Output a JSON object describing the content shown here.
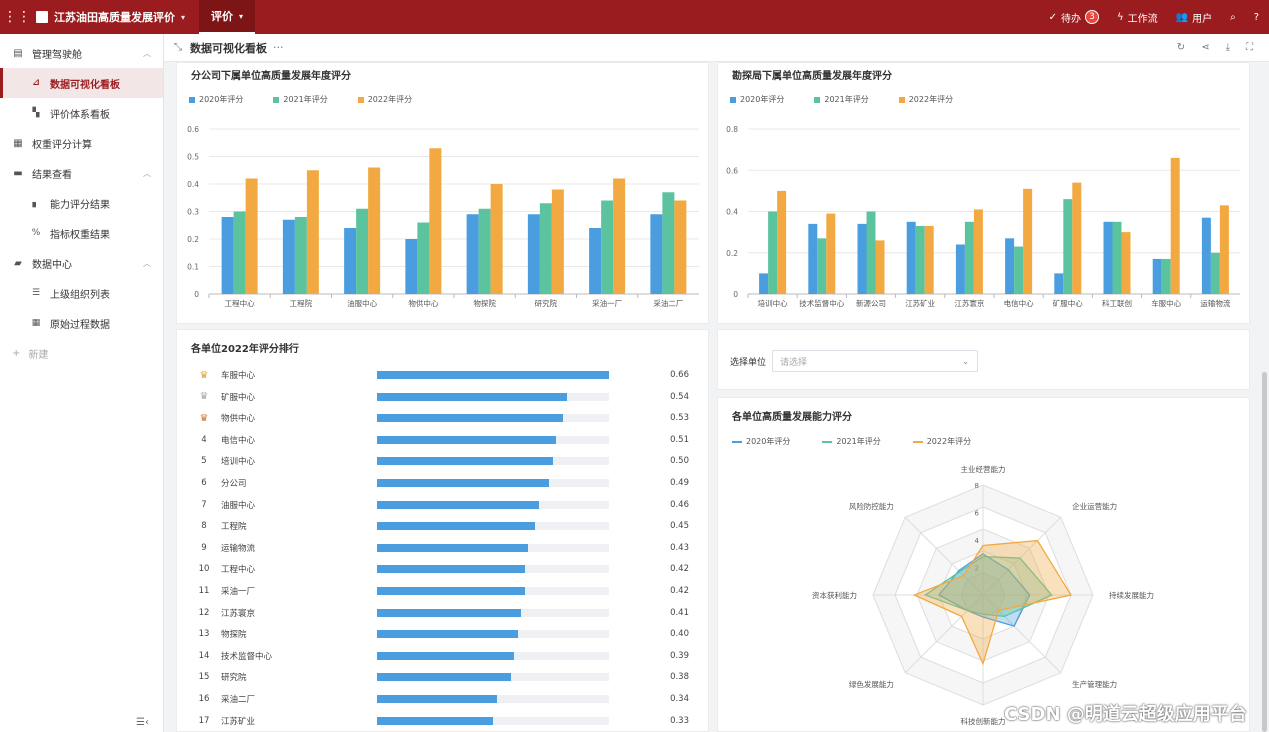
{
  "topbar": {
    "app_title": "江苏油田高质量发展评价",
    "active_tab": "评价",
    "todo_label": "待办",
    "todo_count": "3",
    "workflow_label": "工作流",
    "user_label": "用户"
  },
  "sidebar": {
    "groups": [
      {
        "label": "管理驾驶舱",
        "items": [
          "数据可视化看板",
          "评价体系看板"
        ]
      },
      {
        "label": "权重评分计算",
        "items": []
      },
      {
        "label": "结果查看",
        "items": [
          "能力评分结果",
          "指标权重结果"
        ]
      },
      {
        "label": "数据中心",
        "items": [
          "上级组织列表",
          "原始过程数据"
        ]
      }
    ],
    "new_label": "新建"
  },
  "pagebar": {
    "title": "数据可视化看板",
    "more": "···"
  },
  "colors": {
    "s2020": "#4a9ee0",
    "s2021": "#5bc49f",
    "s2022": "#f2a941",
    "brand": "#9b1c1f"
  },
  "chart_data": [
    {
      "type": "bar",
      "title": "分公司下属单位高质量发展年度评分",
      "categories": [
        "工程中心",
        "工程院",
        "油服中心",
        "物供中心",
        "物探院",
        "研究院",
        "采油一厂",
        "采油二厂"
      ],
      "series": [
        {
          "name": "2020年评分",
          "values": [
            0.28,
            0.27,
            0.24,
            0.2,
            0.29,
            0.29,
            0.24,
            0.29
          ]
        },
        {
          "name": "2021年评分",
          "values": [
            0.3,
            0.28,
            0.31,
            0.26,
            0.31,
            0.33,
            0.34,
            0.37
          ]
        },
        {
          "name": "2022年评分",
          "values": [
            0.42,
            0.45,
            0.46,
            0.53,
            0.4,
            0.38,
            0.42,
            0.34
          ]
        }
      ],
      "ylim": [
        0,
        0.6
      ],
      "yticks": [
        "0",
        "0.1",
        "0.2",
        "0.3",
        "0.4",
        "0.5",
        "0.6"
      ],
      "legend": "top-left"
    },
    {
      "type": "bar",
      "title": "勘探局下属单位高质量发展年度评分",
      "categories": [
        "培训中心",
        "技术监督中心",
        "新源公司",
        "江苏矿业",
        "江苏寰京",
        "电信中心",
        "矿服中心",
        "科工联创",
        "车服中心",
        "运输物流"
      ],
      "series": [
        {
          "name": "2020年评分",
          "values": [
            0.1,
            0.34,
            0.34,
            0.35,
            0.24,
            0.27,
            0.1,
            0.35,
            0.17,
            0.37
          ]
        },
        {
          "name": "2021年评分",
          "values": [
            0.4,
            0.27,
            0.4,
            0.33,
            0.35,
            0.23,
            0.46,
            0.35,
            0.17,
            0.2
          ]
        },
        {
          "name": "2022年评分",
          "values": [
            0.5,
            0.39,
            0.26,
            0.33,
            0.41,
            0.51,
            0.54,
            0.3,
            0.66,
            0.43
          ]
        }
      ],
      "ylim": [
        0,
        0.8
      ],
      "yticks": [
        "0",
        "0.2",
        "0.4",
        "0.6",
        "0.8"
      ],
      "legend": "top-left"
    },
    {
      "type": "bar",
      "title": "各单位2022年评分排行",
      "orientation": "horizontal",
      "categories": [
        "车服中心",
        "矿服中心",
        "物供中心",
        "电信中心",
        "培训中心",
        "分公司",
        "油服中心",
        "工程院",
        "运输物流",
        "工程中心",
        "采油一厂",
        "江苏寰京",
        "物探院",
        "技术监督中心",
        "研究院",
        "采油二厂",
        "江苏矿业"
      ],
      "ranks": [
        "1",
        "2",
        "3",
        "4",
        "5",
        "6",
        "7",
        "8",
        "9",
        "10",
        "11",
        "12",
        "13",
        "14",
        "15",
        "16",
        "17"
      ],
      "values": [
        0.66,
        0.54,
        0.53,
        0.51,
        0.5,
        0.49,
        0.46,
        0.45,
        0.43,
        0.42,
        0.42,
        0.41,
        0.4,
        0.39,
        0.38,
        0.34,
        0.33
      ],
      "value_labels": [
        "0.66",
        "0.54",
        "0.53",
        "0.51",
        "0.50",
        "0.49",
        "0.46",
        "0.45",
        "0.43",
        "0.42",
        "0.42",
        "0.41",
        "0.40",
        "0.39",
        "0.38",
        "0.34",
        "0.33"
      ],
      "xlim": [
        0,
        0.66
      ]
    },
    {
      "type": "radar",
      "title": "各单位高质量发展能力评分",
      "axes": [
        "主业经营能力",
        "企业运营能力",
        "持续发展能力",
        "生产管理能力",
        "科技创新能力",
        "绿色发展能力",
        "资本获利能力",
        "风险防控能力"
      ],
      "rlim": [
        0,
        8
      ],
      "rticks": [
        "2",
        "4",
        "6",
        "8"
      ],
      "series": [
        {
          "name": "2020年评分",
          "values": [
            3.0,
            2.6,
            3.4,
            3.2,
            1.6,
            1.6,
            3.2,
            2.5
          ]
        },
        {
          "name": "2021年评分",
          "values": [
            2.8,
            3.8,
            5.0,
            2.2,
            1.4,
            1.6,
            4.2,
            2.4
          ]
        },
        {
          "name": "2022年评分",
          "values": [
            3.6,
            5.6,
            6.4,
            1.6,
            5.0,
            2.2,
            5.0,
            2.0
          ]
        }
      ],
      "legend": "top-left"
    }
  ],
  "filter": {
    "label": "选择单位",
    "placeholder": "请选择"
  },
  "watermark": "CSDN @明道云超级应用平台"
}
